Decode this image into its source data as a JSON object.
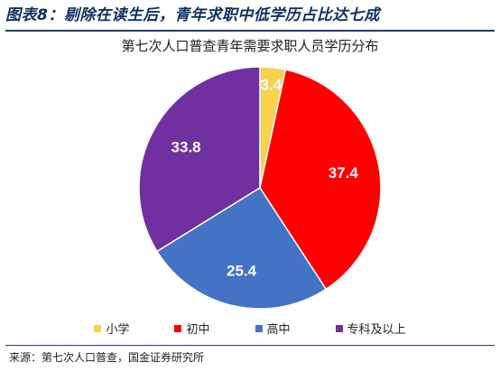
{
  "figure": {
    "title": "图表8：剔除在读生后，青年求职中低学历占比达七成",
    "source": "来源：第七次人口普查，国金证券研究所"
  },
  "chart_data": {
    "type": "pie",
    "title": "第七次人口普查青年需要求职人员学历分布",
    "categories": [
      "小学",
      "初中",
      "高中",
      "专科及以上"
    ],
    "values": [
      3.4,
      37.4,
      25.4,
      33.8
    ],
    "labels": [
      "3.4",
      "37.4",
      "25.4",
      "33.8"
    ],
    "colors": [
      "#f7d24e",
      "#ff0000",
      "#4472c4",
      "#7030a0"
    ],
    "legend_position": "bottom"
  }
}
